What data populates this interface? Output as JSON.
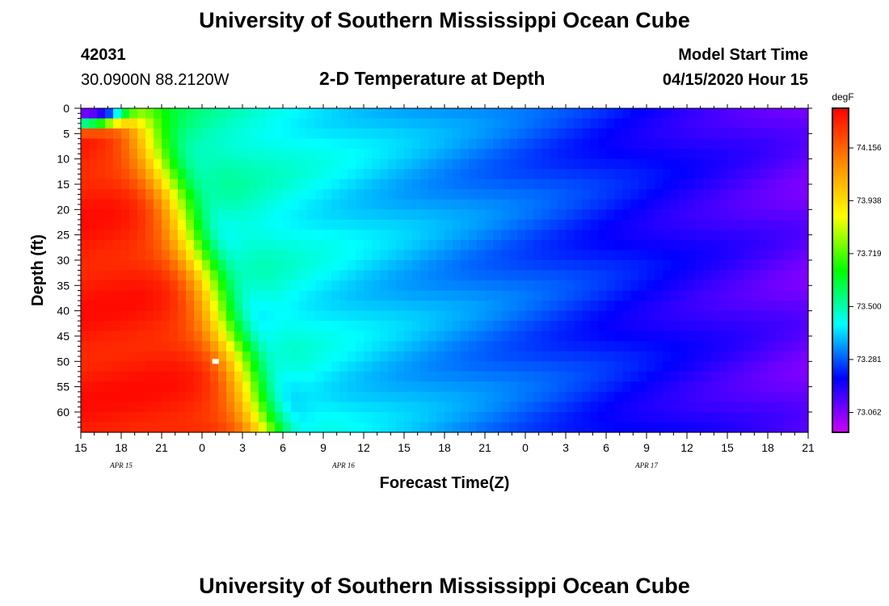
{
  "header": {
    "title": "University of Southern Mississippi Ocean Cube",
    "station_id": "42031",
    "location": "30.0900N 88.2120W",
    "plot_title": "2-D Temperature at Depth",
    "model_label": "Model Start Time",
    "model_time": "04/15/2020 Hour 15"
  },
  "footer": {
    "title": "University of Southern Mississippi Ocean Cube"
  },
  "chart_data": {
    "type": "heatmap",
    "title": "2-D Temperature at Depth",
    "xlabel": "Forecast Time(Z)",
    "ylabel": "Depth (ft)",
    "x_start_hours": 0,
    "x_end_hours": 54,
    "x_ticks": [
      "15",
      "18",
      "21",
      "0",
      "3",
      "6",
      "9",
      "12",
      "15",
      "18",
      "21",
      "0",
      "3",
      "6",
      "9",
      "12",
      "15",
      "18",
      "21"
    ],
    "date_labels": [
      {
        "label": "APR 15",
        "tick_index": 1
      },
      {
        "label": "APR 16",
        "tick_index": 6.5
      },
      {
        "label": "APR 17",
        "tick_index": 14
      }
    ],
    "y_ticks": [
      0,
      5,
      10,
      15,
      20,
      25,
      30,
      35,
      40,
      45,
      50,
      55,
      60
    ],
    "ylim": [
      0,
      64
    ],
    "colorbar": {
      "unit": "degF",
      "ticks": [
        "74.156",
        "73.938",
        "73.719",
        "73.500",
        "73.281",
        "73.062"
      ],
      "tick_values": [
        74.156,
        73.938,
        73.719,
        73.5,
        73.281,
        73.062
      ],
      "range": [
        72.98,
        74.32
      ]
    },
    "marker": {
      "hour": 10,
      "depth": 50
    },
    "colors": {
      "c0": "#cc00ff",
      "c1": "#0000ff",
      "c2": "#00ffff",
      "c3": "#00ff00",
      "c4": "#ffff00",
      "c5": "#ff8800",
      "c6": "#ff0000"
    }
  }
}
